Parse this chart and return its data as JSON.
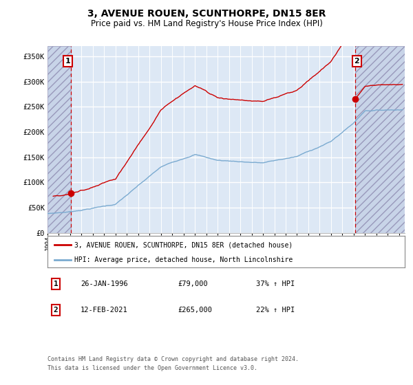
{
  "title": "3, AVENUE ROUEN, SCUNTHORPE, DN15 8ER",
  "subtitle": "Price paid vs. HM Land Registry's House Price Index (HPI)",
  "ylabel_ticks": [
    "£0",
    "£50K",
    "£100K",
    "£150K",
    "£200K",
    "£250K",
    "£300K",
    "£350K"
  ],
  "ytick_vals": [
    0,
    50000,
    100000,
    150000,
    200000,
    250000,
    300000,
    350000
  ],
  "ylim": [
    0,
    370000
  ],
  "xlim_start": 1994.0,
  "xlim_end": 2025.5,
  "sale1_year": 1996.07,
  "sale1_price": 79000,
  "sale2_year": 2021.12,
  "sale2_price": 265000,
  "legend_line1": "3, AVENUE ROUEN, SCUNTHORPE, DN15 8ER (detached house)",
  "legend_line2": "HPI: Average price, detached house, North Lincolnshire",
  "table_row1_num": "1",
  "table_row1_date": "26-JAN-1996",
  "table_row1_price": "£79,000",
  "table_row1_hpi": "37% ↑ HPI",
  "table_row2_num": "2",
  "table_row2_date": "12-FEB-2021",
  "table_row2_price": "£265,000",
  "table_row2_hpi": "22% ↑ HPI",
  "footer": "Contains HM Land Registry data © Crown copyright and database right 2024.\nThis data is licensed under the Open Government Licence v3.0.",
  "plot_bg": "#dde8f5",
  "red_line_color": "#cc0000",
  "blue_line_color": "#7aaad0",
  "grid_color": "#ffffff",
  "sale_dot_color": "#cc0000",
  "dashed_line_color": "#cc0000",
  "label_box_color": "#cc0000",
  "hatch_bg": "#c8d4e8"
}
